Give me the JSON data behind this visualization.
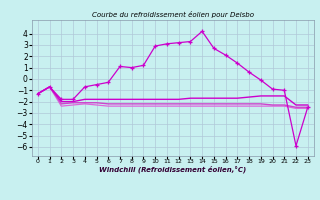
{
  "title": "Courbe du refroidissement éolien pour Delsbo",
  "xlabel": "Windchill (Refroidissement éolien,°C)",
  "xlim": [
    -0.5,
    23.5
  ],
  "ylim": [
    -6.8,
    5.2
  ],
  "yticks": [
    -6,
    -5,
    -4,
    -3,
    -2,
    -1,
    0,
    1,
    2,
    3,
    4
  ],
  "xticks": [
    0,
    1,
    2,
    3,
    4,
    5,
    6,
    7,
    8,
    9,
    10,
    11,
    12,
    13,
    14,
    15,
    16,
    17,
    18,
    19,
    20,
    21,
    22,
    23
  ],
  "background_color": "#c8f0f0",
  "grid_color": "#b0c8d8",
  "line_color1": "#cc00cc",
  "line_color2": "#cc00cc",
  "line_color3": "#cc44cc",
  "line_color4": "#dd66dd",
  "line1": [
    -1.3,
    -0.7,
    -1.8,
    -1.8,
    -0.7,
    -0.5,
    -0.3,
    1.1,
    1.0,
    1.2,
    2.9,
    3.1,
    3.2,
    3.3,
    4.2,
    2.7,
    2.1,
    1.4,
    0.6,
    -0.1,
    -0.9,
    -1.0,
    -5.9,
    -2.5
  ],
  "line2": [
    -1.3,
    -0.7,
    -2.0,
    -2.0,
    -1.8,
    -1.8,
    -1.8,
    -1.8,
    -1.8,
    -1.8,
    -1.8,
    -1.8,
    -1.8,
    -1.7,
    -1.7,
    -1.7,
    -1.7,
    -1.7,
    -1.6,
    -1.5,
    -1.5,
    -1.5,
    -2.3,
    -2.3
  ],
  "line3": [
    -1.3,
    -0.7,
    -2.2,
    -2.1,
    -2.1,
    -2.1,
    -2.2,
    -2.2,
    -2.2,
    -2.2,
    -2.2,
    -2.2,
    -2.2,
    -2.2,
    -2.2,
    -2.2,
    -2.2,
    -2.2,
    -2.2,
    -2.2,
    -2.3,
    -2.3,
    -2.5,
    -2.5
  ],
  "line4": [
    -1.3,
    -0.7,
    -2.4,
    -2.3,
    -2.2,
    -2.3,
    -2.4,
    -2.4,
    -2.4,
    -2.4,
    -2.4,
    -2.4,
    -2.4,
    -2.4,
    -2.4,
    -2.4,
    -2.4,
    -2.4,
    -2.4,
    -2.4,
    -2.4,
    -2.4,
    -2.6,
    -2.6
  ]
}
